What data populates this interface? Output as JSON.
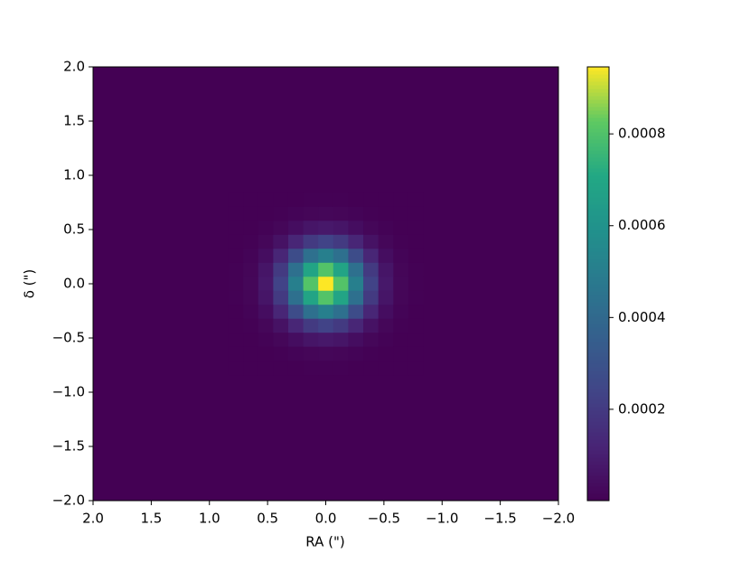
{
  "chart_data": {
    "type": "heatmap",
    "x_label": "RA (\")",
    "y_label": "δ (\")",
    "x": [
      0.774,
      0.645,
      0.516,
      0.387,
      0.258,
      0.129,
      0,
      -0.129,
      -0.258,
      -0.387,
      -0.516,
      -0.645,
      -0.774
    ],
    "y": [
      0.774,
      0.645,
      0.516,
      0.387,
      0.258,
      0.129,
      0,
      -0.129,
      -0.258,
      -0.387,
      -0.516,
      -0.645,
      -0.774
    ],
    "values": [
      [
        0,
        0,
        0,
        1e-06,
        2e-06,
        3e-06,
        4e-06,
        3e-06,
        2e-06,
        1e-06,
        0,
        0,
        0
      ],
      [
        0,
        0,
        2e-06,
        5e-06,
        1.1e-05,
        1.7e-05,
        2e-05,
        1.7e-05,
        1.1e-05,
        5e-06,
        2e-06,
        0,
        0
      ],
      [
        0,
        2e-06,
        7e-06,
        2e-05,
        4.3e-05,
        6.8e-05,
        8e-05,
        6.8e-05,
        4.3e-05,
        2e-05,
        7e-06,
        2e-06,
        0
      ],
      [
        1e-06,
        5e-06,
        2e-05,
        5.9e-05,
        0.000126,
        0.000201,
        0.000234,
        0.000201,
        0.000126,
        5.9e-05,
        2e-05,
        5e-06,
        1e-06
      ],
      [
        2e-06,
        1.1e-05,
        4.3e-05,
        0.000126,
        0.000274,
        0.000434,
        0.000507,
        0.000434,
        0.000274,
        0.000126,
        4.3e-05,
        1.1e-05,
        2e-06
      ],
      [
        3e-06,
        1.7e-05,
        6.8e-05,
        0.000201,
        0.000434,
        0.00069,
        0.000806,
        0.00069,
        0.000434,
        0.000201,
        6.8e-05,
        1.7e-05,
        3e-06
      ],
      [
        4e-06,
        2e-05,
        8e-05,
        0.000234,
        0.000507,
        0.000806,
        0.000946,
        0.000806,
        0.000507,
        0.000234,
        8e-05,
        2e-05,
        4e-06
      ],
      [
        3e-06,
        1.7e-05,
        6.8e-05,
        0.000201,
        0.000434,
        0.00069,
        0.000806,
        0.00069,
        0.000434,
        0.000201,
        6.8e-05,
        1.7e-05,
        3e-06
      ],
      [
        2e-06,
        1.1e-05,
        4.3e-05,
        0.000126,
        0.000274,
        0.000434,
        0.000507,
        0.000434,
        0.000274,
        0.000126,
        4.3e-05,
        1.1e-05,
        2e-06
      ],
      [
        1e-06,
        5e-06,
        2e-05,
        5.9e-05,
        0.000126,
        0.000201,
        0.000234,
        0.000201,
        0.000126,
        5.9e-05,
        2e-05,
        5e-06,
        1e-06
      ],
      [
        0,
        2e-06,
        7e-06,
        2e-05,
        4.3e-05,
        6.8e-05,
        8e-05,
        6.8e-05,
        4.3e-05,
        2e-05,
        7e-06,
        2e-06,
        0
      ],
      [
        0,
        0,
        2e-06,
        5e-06,
        1.1e-05,
        1.7e-05,
        2e-05,
        1.7e-05,
        1.1e-05,
        5e-06,
        2e-06,
        0,
        0
      ],
      [
        0,
        0,
        0,
        1e-06,
        2e-06,
        3e-06,
        4e-06,
        3e-06,
        2e-06,
        1e-06,
        0,
        0,
        0
      ]
    ],
    "colormap": "viridis",
    "clim": [
      1e-06,
      0.000946
    ],
    "cticks": [
      0.0002,
      0.0004,
      0.0006,
      0.0008
    ],
    "xlim": [
      2,
      -2
    ],
    "ylim": [
      -2,
      2
    ],
    "xticks": [
      {
        "value": 2,
        "label": "2.0"
      },
      {
        "value": 1.5,
        "label": "1.5"
      },
      {
        "value": 1,
        "label": "1.0"
      },
      {
        "value": 0.5,
        "label": "0.5"
      },
      {
        "value": 0,
        "label": "0.0"
      },
      {
        "value": -0.5,
        "label": "−0.5"
      },
      {
        "value": -1,
        "label": "−1.0"
      },
      {
        "value": -1.5,
        "label": "−1.5"
      },
      {
        "value": -2,
        "label": "−2.0"
      }
    ],
    "yticks": [
      {
        "value": -2,
        "label": "−2.0"
      },
      {
        "value": -1.5,
        "label": "−1.5"
      },
      {
        "value": -1,
        "label": "−1.0"
      },
      {
        "value": -0.5,
        "label": "−0.5"
      },
      {
        "value": 0,
        "label": "0.0"
      },
      {
        "value": 0.5,
        "label": "0.5"
      },
      {
        "value": 1,
        "label": "1.0"
      },
      {
        "value": 1.5,
        "label": "1.5"
      },
      {
        "value": 2,
        "label": "2.0"
      }
    ]
  }
}
